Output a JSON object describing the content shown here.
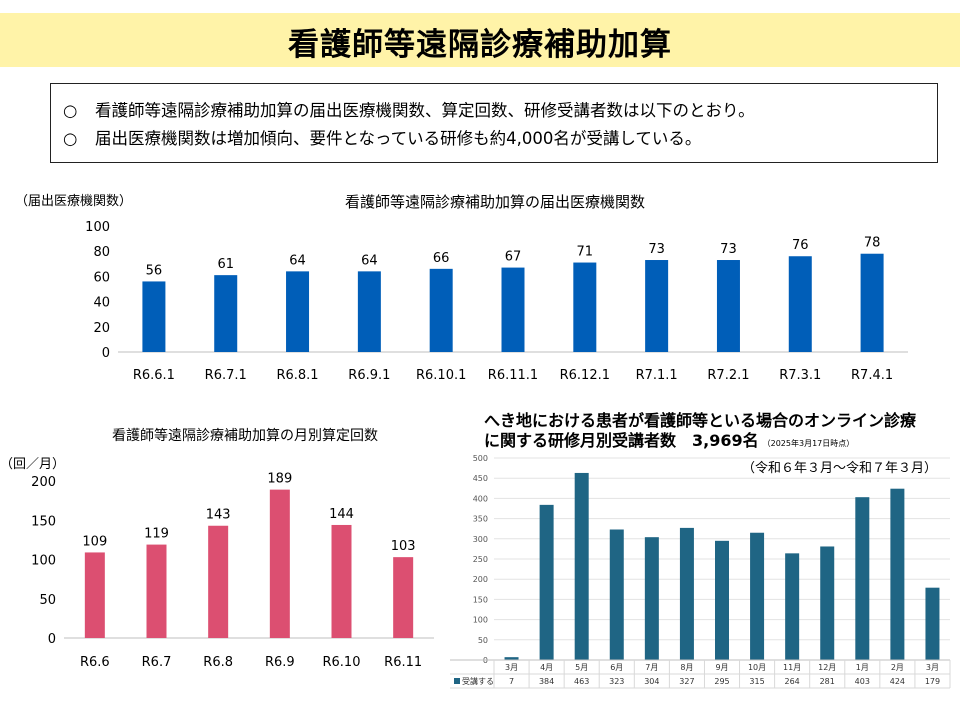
{
  "page": {
    "title": "看護師等遠隔診療補助加算",
    "summary": [
      {
        "mark": "○",
        "text": "看護師等遠隔診療補助加算の届出医療機関数、算定回数、研修受講者数は以下のとおり。"
      },
      {
        "mark": "○",
        "text": "届出医療機関数は増加傾向、要件となっている研修も約4,000名が受講している。"
      }
    ]
  },
  "chart_data": [
    {
      "type": "bar",
      "title": "看護師等遠隔診療補助加算の届出医療機関数",
      "ylabel": "（届出医療機関数）",
      "categories": [
        "R6.6.1",
        "R6.7.1",
        "R6.8.1",
        "R6.9.1",
        "R6.10.1",
        "R6.11.1",
        "R6.12.1",
        "R7.1.1",
        "R7.2.1",
        "R7.3.1",
        "R7.4.1"
      ],
      "values": [
        56,
        61,
        64,
        64,
        66,
        67,
        71,
        73,
        73,
        76,
        78
      ],
      "ylim": [
        0,
        100
      ],
      "yticks": [
        0,
        20,
        40,
        60,
        80,
        100
      ],
      "color": "#005eb8",
      "grid": false,
      "data_labels": true
    },
    {
      "type": "bar",
      "title": "看護師等遠隔診療補助加算の月別算定回数",
      "ylabel": "（回／月）",
      "categories": [
        "R6.6",
        "R6.7",
        "R6.8",
        "R6.9",
        "R6.10",
        "R6.11"
      ],
      "values": [
        109,
        119,
        143,
        189,
        144,
        103
      ],
      "ylim": [
        0,
        200
      ],
      "yticks": [
        0,
        50,
        100,
        150,
        200
      ],
      "color": "#dc4f71",
      "grid": false,
      "data_labels": true
    },
    {
      "type": "bar",
      "title_lines": [
        "へき地における患者が看護師等といる場合のオンライン診療",
        "に関する研修月別受講者数　3,969名"
      ],
      "title_note": "（2025年3月17日時点）",
      "subtitle": "（令和６年３月～令和７年３月）",
      "categories": [
        "3月",
        "4月",
        "5月",
        "6月",
        "7月",
        "8月",
        "9月",
        "10月",
        "11月",
        "12月",
        "1月",
        "2月",
        "3月"
      ],
      "values": [
        7,
        384,
        463,
        323,
        304,
        327,
        295,
        315,
        264,
        281,
        403,
        424,
        179
      ],
      "ylim": [
        0,
        500
      ],
      "yticks": [
        0,
        50,
        100,
        150,
        200,
        250,
        300,
        350,
        400,
        450,
        500
      ],
      "series_name": "受講する",
      "color": "#1f6584",
      "grid": true,
      "data_table": true
    }
  ]
}
